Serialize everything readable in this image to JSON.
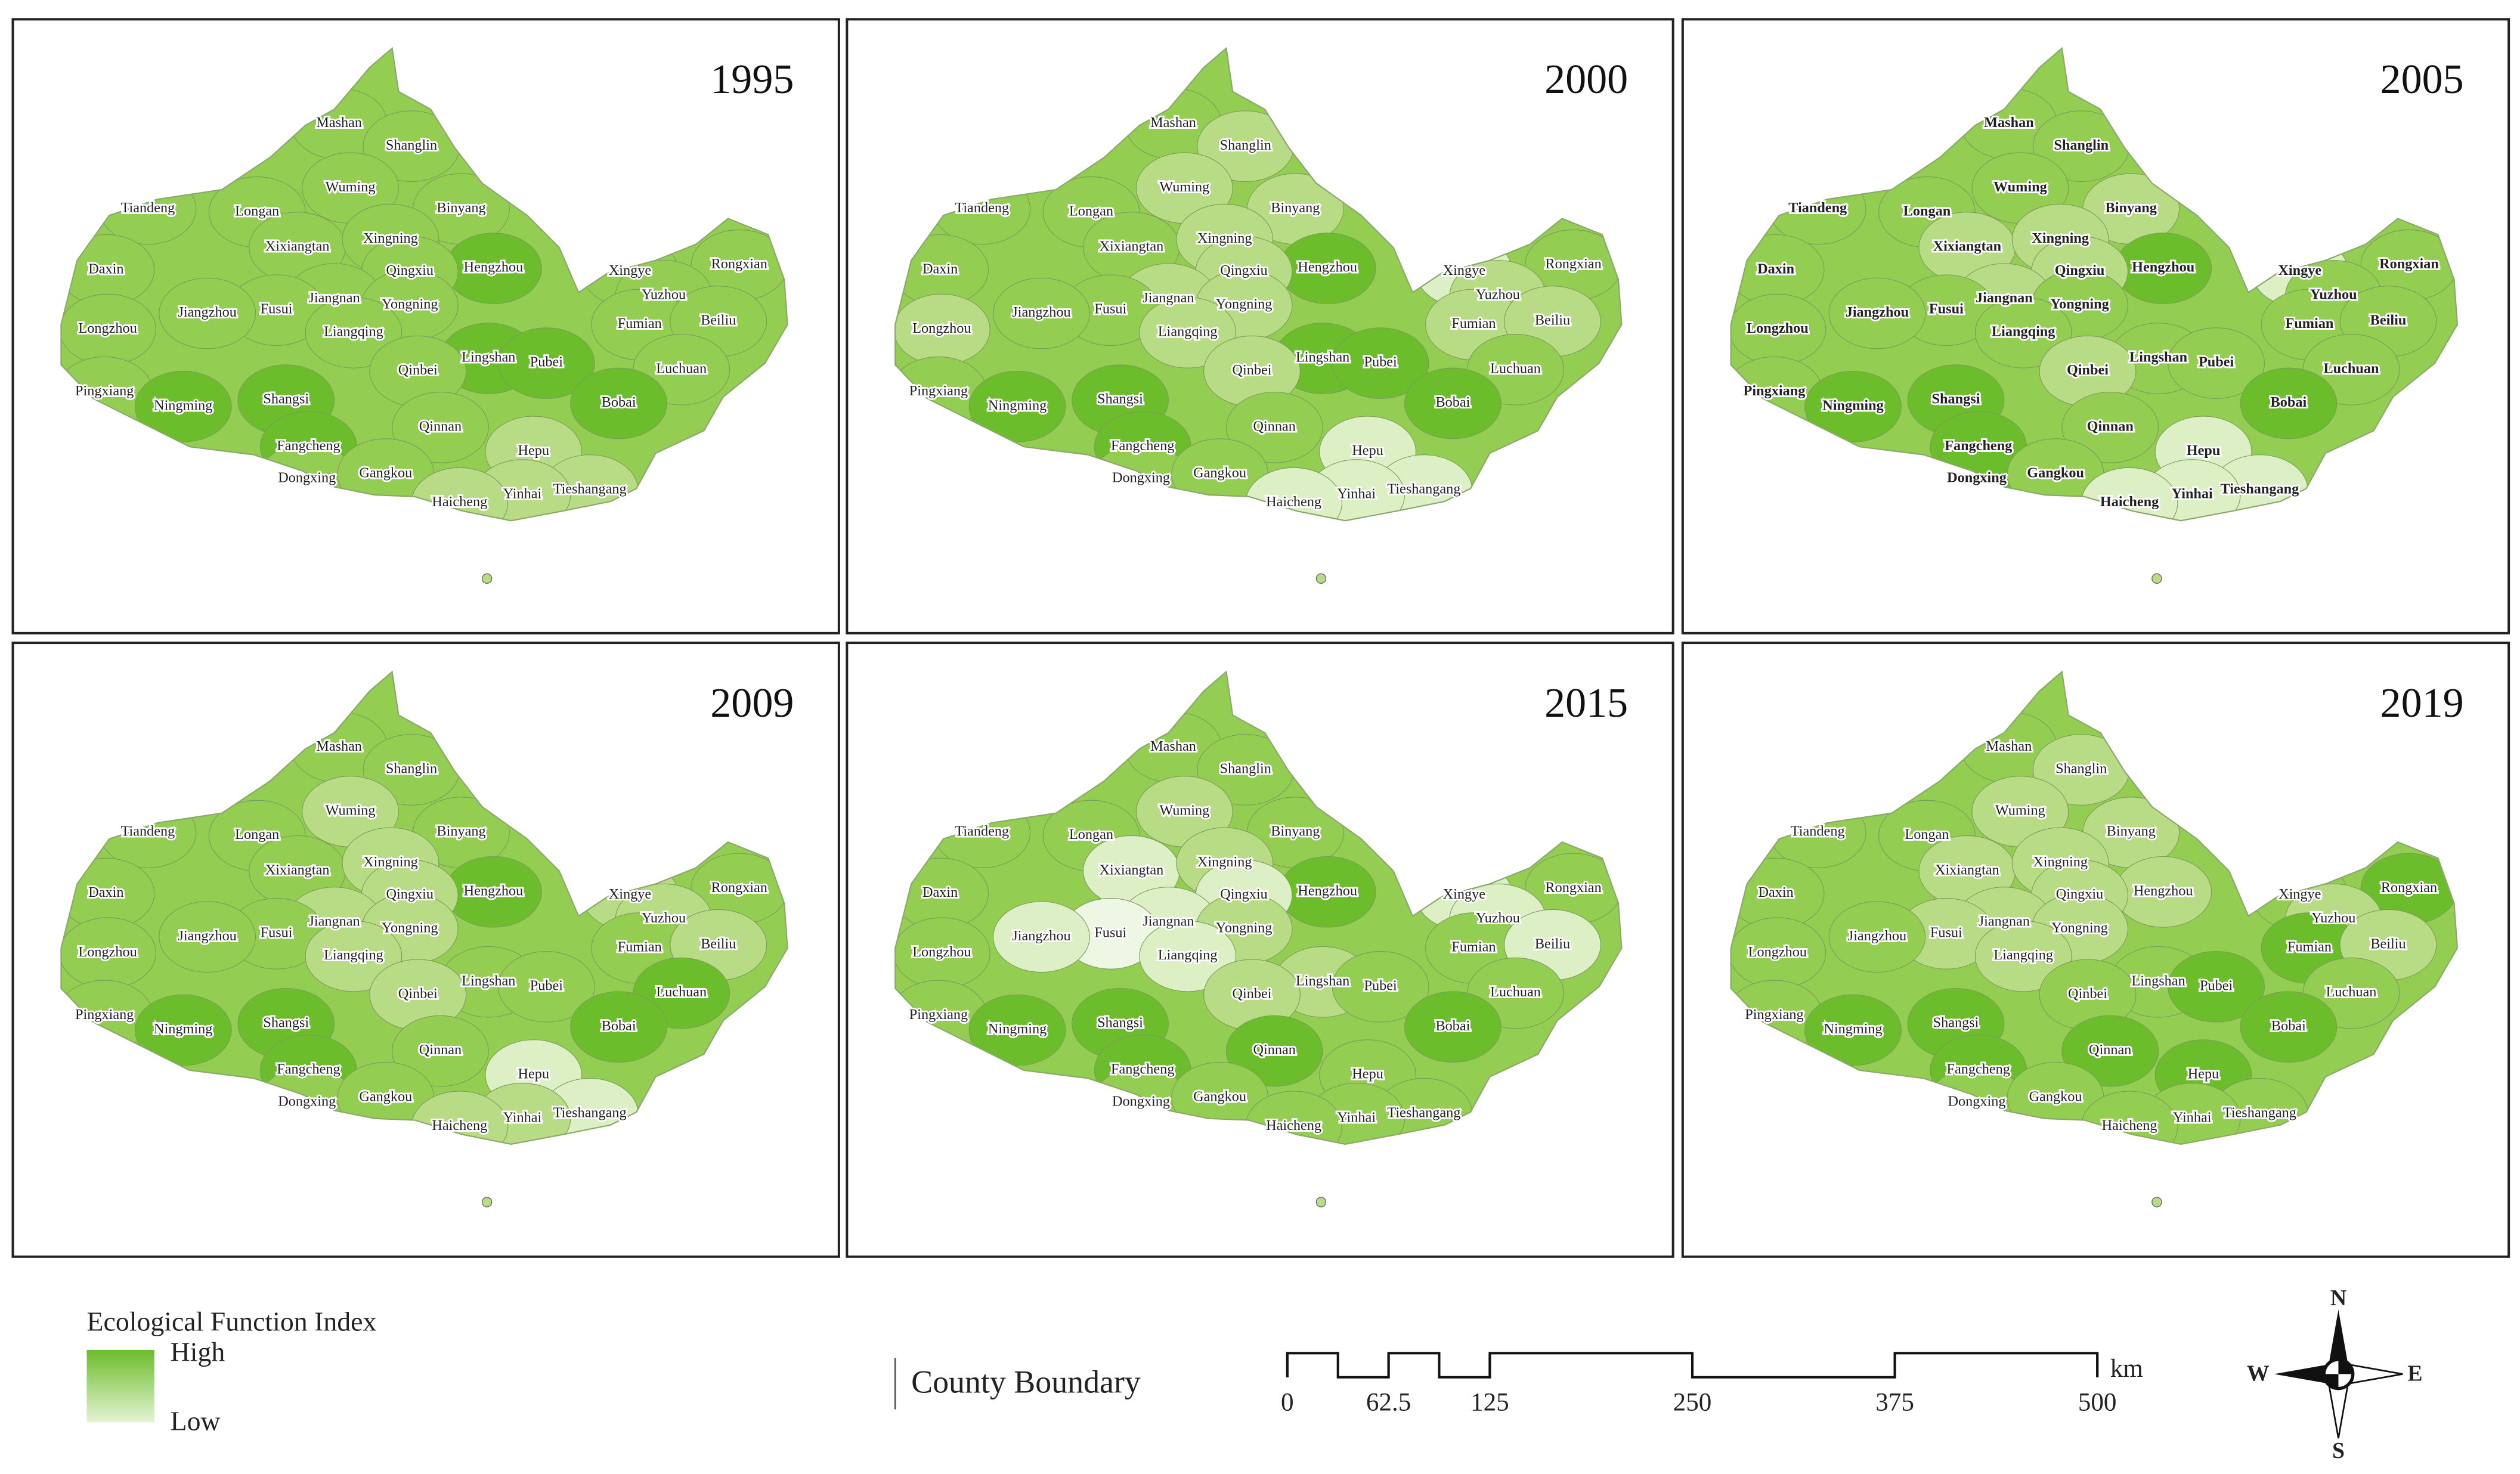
{
  "counties": [
    "Mashan",
    "Shanglin",
    "Wuming",
    "Tiandeng",
    "Longan",
    "Binyang",
    "Xixiangtan",
    "Xingning",
    "Hengzhou",
    "Daxin",
    "Qingxiu",
    "Jiangnan",
    "Fusui",
    "Yongning",
    "Jiangzhou",
    "Liangqing",
    "Longzhou",
    "Xingye",
    "Rongxian",
    "Yuzhou",
    "Fumian",
    "Beiliu",
    "Lingshan",
    "Qinbei",
    "Pubei",
    "Luchuan",
    "Pingxiang",
    "Ningming",
    "Shangsi",
    "Bobai",
    "Qinnan",
    "Fangcheng",
    "Hepu",
    "Dongxing",
    "Gangkou",
    "Tieshangang",
    "Yinhai",
    "Haicheng"
  ],
  "panels": [
    {
      "year": 1995,
      "labels_bold": false,
      "fills": [
        "#93cd52",
        "#93cd52",
        "#93cd52",
        "#93cd52",
        "#93cd52",
        "#93cd52",
        "#93cd52",
        "#93cd52",
        "#6bbd2b",
        "#93cd52",
        "#93cd52",
        "#93cd52",
        "#93cd52",
        "#93cd52",
        "#93cd52",
        "#93cd52",
        "#93cd52",
        "#93cd52",
        "#93cd52",
        "#93cd52",
        "#93cd52",
        "#93cd52",
        "#6bbd2b",
        "#93cd52",
        "#6bbd2b",
        "#93cd52",
        "#93cd52",
        "#6bbd2b",
        "#6bbd2b",
        "#6bbd2b",
        "#93cd52",
        "#6bbd2b",
        "#b7dc85",
        "#93cd52",
        "#93cd52",
        "#b7dc85",
        "#b7dc85",
        "#b7dc85"
      ]
    },
    {
      "year": 2000,
      "labels_bold": false,
      "fills": [
        "#93cd52",
        "#b7dc85",
        "#b7dc85",
        "#93cd52",
        "#93cd52",
        "#b7dc85",
        "#93cd52",
        "#b7dc85",
        "#6bbd2b",
        "#93cd52",
        "#b7dc85",
        "#b7dc85",
        "#93cd52",
        "#b7dc85",
        "#93cd52",
        "#b7dc85",
        "#b7dc85",
        "#dcefc5",
        "#93cd52",
        "#b7dc85",
        "#b7dc85",
        "#b7dc85",
        "#6bbd2b",
        "#b7dc85",
        "#6bbd2b",
        "#93cd52",
        "#93cd52",
        "#6bbd2b",
        "#6bbd2b",
        "#6bbd2b",
        "#93cd52",
        "#6bbd2b",
        "#dcefc5",
        "#93cd52",
        "#93cd52",
        "#dcefc5",
        "#dcefc5",
        "#dcefc5"
      ]
    },
    {
      "year": 2005,
      "labels_bold": true,
      "fills": [
        "#93cd52",
        "#93cd52",
        "#93cd52",
        "#93cd52",
        "#93cd52",
        "#b7dc85",
        "#b7dc85",
        "#b7dc85",
        "#6bbd2b",
        "#93cd52",
        "#b7dc85",
        "#b7dc85",
        "#93cd52",
        "#93cd52",
        "#93cd52",
        "#93cd52",
        "#93cd52",
        "#dcefc5",
        "#93cd52",
        "#93cd52",
        "#93cd52",
        "#93cd52",
        "#93cd52",
        "#b7dc85",
        "#93cd52",
        "#93cd52",
        "#93cd52",
        "#6bbd2b",
        "#6bbd2b",
        "#6bbd2b",
        "#93cd52",
        "#6bbd2b",
        "#dcefc5",
        "#6bbd2b",
        "#93cd52",
        "#dcefc5",
        "#dcefc5",
        "#dcefc5"
      ]
    },
    {
      "year": 2009,
      "labels_bold": false,
      "fills": [
        "#93cd52",
        "#93cd52",
        "#b7dc85",
        "#93cd52",
        "#93cd52",
        "#93cd52",
        "#93cd52",
        "#b7dc85",
        "#6bbd2b",
        "#93cd52",
        "#b7dc85",
        "#b7dc85",
        "#93cd52",
        "#b7dc85",
        "#93cd52",
        "#b7dc85",
        "#93cd52",
        "#b7dc85",
        "#93cd52",
        "#b7dc85",
        "#93cd52",
        "#b7dc85",
        "#93cd52",
        "#b7dc85",
        "#93cd52",
        "#6bbd2b",
        "#93cd52",
        "#6bbd2b",
        "#6bbd2b",
        "#6bbd2b",
        "#93cd52",
        "#6bbd2b",
        "#dcefc5",
        "#93cd52",
        "#93cd52",
        "#dcefc5",
        "#b7dc85",
        "#b7dc85"
      ]
    },
    {
      "year": 2015,
      "labels_bold": false,
      "fills": [
        "#93cd52",
        "#93cd52",
        "#b7dc85",
        "#93cd52",
        "#93cd52",
        "#93cd52",
        "#dcefc5",
        "#b7dc85",
        "#6bbd2b",
        "#93cd52",
        "#dcefc5",
        "#dcefc5",
        "#eef7e4",
        "#b7dc85",
        "#dcefc5",
        "#dcefc5",
        "#93cd52",
        "#dcefc5",
        "#93cd52",
        "#dcefc5",
        "#93cd52",
        "#dcefc5",
        "#b7dc85",
        "#b7dc85",
        "#93cd52",
        "#93cd52",
        "#93cd52",
        "#6bbd2b",
        "#6bbd2b",
        "#6bbd2b",
        "#6bbd2b",
        "#6bbd2b",
        "#93cd52",
        "#93cd52",
        "#93cd52",
        "#93cd52",
        "#93cd52",
        "#93cd52"
      ]
    },
    {
      "year": 2019,
      "labels_bold": false,
      "fills": [
        "#93cd52",
        "#b7dc85",
        "#b7dc85",
        "#93cd52",
        "#93cd52",
        "#b7dc85",
        "#b7dc85",
        "#b7dc85",
        "#b7dc85",
        "#93cd52",
        "#b7dc85",
        "#b7dc85",
        "#b7dc85",
        "#b7dc85",
        "#93cd52",
        "#b7dc85",
        "#93cd52",
        "#93cd52",
        "#6bbd2b",
        "#b7dc85",
        "#6bbd2b",
        "#b7dc85",
        "#93cd52",
        "#93cd52",
        "#6bbd2b",
        "#93cd52",
        "#93cd52",
        "#6bbd2b",
        "#6bbd2b",
        "#6bbd2b",
        "#6bbd2b",
        "#6bbd2b",
        "#6bbd2b",
        "#93cd52",
        "#93cd52",
        "#93cd52",
        "#93cd52",
        "#93cd52"
      ]
    }
  ],
  "legend": {
    "title": "Ecological Function Index",
    "high": "High",
    "low": "Low",
    "high_color": "#6bbd2b",
    "low_color": "#e4f3d4",
    "boundary": "County Boundary"
  },
  "scalebar": {
    "ticks": [
      0,
      62.5,
      125,
      250,
      375,
      500
    ],
    "unit": "km"
  },
  "compass": {
    "north": "N",
    "east": "E",
    "south": "S",
    "west": "W"
  }
}
